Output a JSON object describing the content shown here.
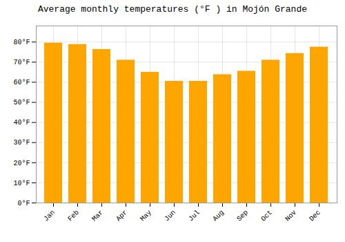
{
  "chart_data": {
    "type": "bar",
    "title": "Average monthly temperatures (°F ) in Mojón Grande",
    "categories": [
      "Jan",
      "Feb",
      "Mar",
      "Apr",
      "May",
      "Jun",
      "Jul",
      "Aug",
      "Sep",
      "Oct",
      "Nov",
      "Dec"
    ],
    "values": [
      79.5,
      78.8,
      76.3,
      71.0,
      65.0,
      60.5,
      60.5,
      63.8,
      65.5,
      71.0,
      74.3,
      77.5
    ],
    "color": "#FFA500",
    "ylim": [
      0,
      88
    ],
    "yticks": [
      {
        "value": 0,
        "label": "0°F"
      },
      {
        "value": 10,
        "label": "10°F"
      },
      {
        "value": 20,
        "label": "20°F"
      },
      {
        "value": 30,
        "label": "30°F"
      },
      {
        "value": 40,
        "label": "40°F"
      },
      {
        "value": 50,
        "label": "50°F"
      },
      {
        "value": 60,
        "label": "60°F"
      },
      {
        "value": 70,
        "label": "70°F"
      },
      {
        "value": 80,
        "label": "80°F"
      }
    ],
    "grid": true
  }
}
